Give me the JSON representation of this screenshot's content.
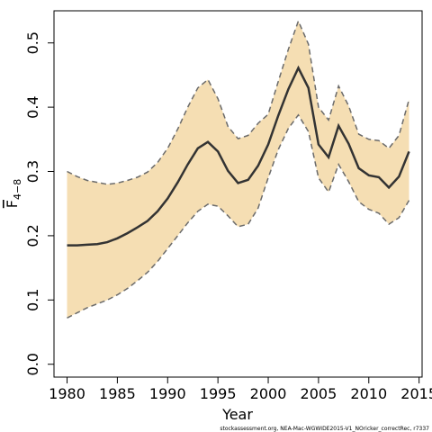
{
  "chart_data": {
    "type": "line",
    "xlabel": "Year",
    "ylabel": "F",
    "ylabel_subscript": "4−8",
    "xlim": [
      1978.7,
      2015.3
    ],
    "ylim": [
      -0.02,
      0.55
    ],
    "xticks": [
      1980,
      1985,
      1990,
      1995,
      2000,
      2005,
      2010,
      2015
    ],
    "yticks": [
      0.0,
      0.1,
      0.2,
      0.3,
      0.4,
      0.5
    ],
    "ytick_labels": [
      "0.0",
      "0.1",
      "0.2",
      "0.3",
      "0.4",
      "0.5"
    ],
    "grid": false,
    "colors": {
      "band_fill": "#f5deb3",
      "band_edge": "#6b6b6b",
      "line": "#333333"
    },
    "x": [
      1980,
      1981,
      1982,
      1983,
      1984,
      1985,
      1986,
      1987,
      1988,
      1989,
      1990,
      1991,
      1992,
      1993,
      1994,
      1995,
      1996,
      1997,
      1998,
      1999,
      2000,
      2001,
      2002,
      2003,
      2004,
      2005,
      2006,
      2007,
      2008,
      2009,
      2010,
      2011,
      2012,
      2013,
      2014
    ],
    "series": [
      {
        "role": "estimate",
        "values": [
          0.185,
          0.185,
          0.186,
          0.187,
          0.19,
          0.196,
          0.204,
          0.213,
          0.223,
          0.238,
          0.258,
          0.283,
          0.311,
          0.336,
          0.346,
          0.331,
          0.301,
          0.282,
          0.287,
          0.309,
          0.342,
          0.387,
          0.428,
          0.461,
          0.43,
          0.342,
          0.322,
          0.371,
          0.343,
          0.305,
          0.294,
          0.291,
          0.275,
          0.292,
          0.331
        ]
      },
      {
        "role": "upper",
        "values": [
          0.3,
          0.292,
          0.286,
          0.283,
          0.28,
          0.282,
          0.286,
          0.291,
          0.299,
          0.314,
          0.336,
          0.366,
          0.4,
          0.43,
          0.443,
          0.413,
          0.37,
          0.351,
          0.356,
          0.375,
          0.389,
          0.44,
          0.49,
          0.534,
          0.498,
          0.4,
          0.38,
          0.433,
          0.402,
          0.358,
          0.35,
          0.348,
          0.336,
          0.356,
          0.412
        ]
      },
      {
        "role": "lower",
        "values": [
          0.072,
          0.08,
          0.088,
          0.094,
          0.1,
          0.108,
          0.118,
          0.13,
          0.143,
          0.16,
          0.18,
          0.2,
          0.22,
          0.238,
          0.249,
          0.246,
          0.231,
          0.214,
          0.218,
          0.243,
          0.29,
          0.334,
          0.367,
          0.388,
          0.362,
          0.29,
          0.268,
          0.311,
          0.284,
          0.253,
          0.241,
          0.235,
          0.218,
          0.228,
          0.255
        ]
      }
    ]
  },
  "credit": "stockassessment.org, NEA-Mac-WGWIDE2015-V1_NOricker_correctRec, r7337"
}
